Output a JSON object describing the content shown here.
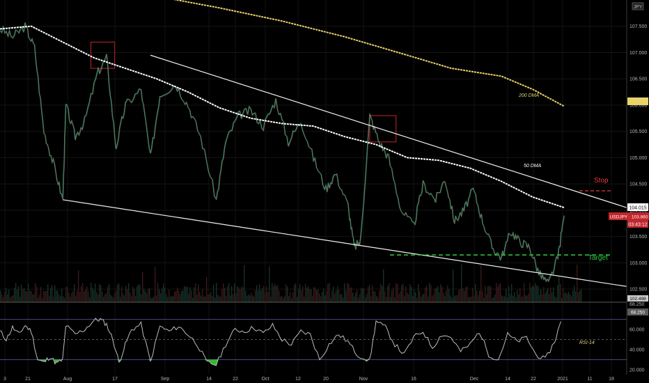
{
  "chart_data": {
    "type": "line",
    "symbol": "USDJPY",
    "currency": "JPY",
    "ylim": [
      102.25,
      108.0
    ],
    "price_ticks": [
      "107.500",
      "107.000",
      "106.500",
      "106.000",
      "105.500",
      "105.000",
      "104.500",
      "104.000",
      "103.500",
      "103.000",
      "102.500"
    ],
    "x_ticks": [
      "3",
      "21",
      "Aug",
      "17",
      "Sep",
      "14",
      "22",
      "Oct",
      "12",
      "20",
      "Nov",
      "16",
      "Dec",
      "14",
      "22",
      "2021",
      "11",
      "18"
    ],
    "price_badges": {
      "last_price": "104.015",
      "symbol_price": "USDJPY · 103.860",
      "countdown": "03:43:12",
      "ma_200": "105.972",
      "bottom": "102.498",
      "rsi_upper": "68.250",
      "rsi_value": "68.250"
    },
    "rsi_ticks": [
      "60.000",
      "40.000",
      "20.000"
    ],
    "rsi_ylim": [
      15,
      85
    ],
    "rsi_levels": {
      "upper": 70,
      "mid": 50,
      "lower": 30
    },
    "annotations": {
      "ma200_label": "200 DMA",
      "ma50_label": "50 DMA",
      "stop_label": "Stop",
      "target_label": "Target",
      "rsi_label": "RSI-14"
    },
    "levels": {
      "stop": 104.37,
      "target": 103.15
    },
    "upper_trendline": [
      [
        0.24,
        106.95
      ],
      [
        1.0,
        104.05
      ]
    ],
    "lower_trendline": [
      [
        0.1,
        104.2
      ],
      [
        1.0,
        102.55
      ]
    ],
    "price_series": [
      [
        0.0,
        107.45
      ],
      [
        0.02,
        107.3
      ],
      [
        0.04,
        107.5
      ],
      [
        0.055,
        107.1
      ],
      [
        0.07,
        105.5
      ],
      [
        0.085,
        104.9
      ],
      [
        0.1,
        104.2
      ],
      [
        0.105,
        106.0
      ],
      [
        0.12,
        105.4
      ],
      [
        0.135,
        105.7
      ],
      [
        0.155,
        106.6
      ],
      [
        0.17,
        106.9
      ],
      [
        0.185,
        105.2
      ],
      [
        0.2,
        106.0
      ],
      [
        0.225,
        106.3
      ],
      [
        0.24,
        105.0
      ],
      [
        0.255,
        106.2
      ],
      [
        0.28,
        106.4
      ],
      [
        0.3,
        106.0
      ],
      [
        0.32,
        105.4
      ],
      [
        0.345,
        104.2
      ],
      [
        0.36,
        105.3
      ],
      [
        0.38,
        105.8
      ],
      [
        0.4,
        105.9
      ],
      [
        0.42,
        105.6
      ],
      [
        0.44,
        106.1
      ],
      [
        0.46,
        105.3
      ],
      [
        0.48,
        105.7
      ],
      [
        0.5,
        105.0
      ],
      [
        0.52,
        104.4
      ],
      [
        0.535,
        104.7
      ],
      [
        0.555,
        104.1
      ],
      [
        0.565,
        103.3
      ],
      [
        0.575,
        103.4
      ],
      [
        0.59,
        105.8
      ],
      [
        0.605,
        105.3
      ],
      [
        0.62,
        105.0
      ],
      [
        0.64,
        104.0
      ],
      [
        0.66,
        103.7
      ],
      [
        0.675,
        104.5
      ],
      [
        0.695,
        104.2
      ],
      [
        0.71,
        104.6
      ],
      [
        0.725,
        103.8
      ],
      [
        0.74,
        104.0
      ],
      [
        0.755,
        104.4
      ],
      [
        0.77,
        103.8
      ],
      [
        0.785,
        103.3
      ],
      [
        0.8,
        103.1
      ],
      [
        0.815,
        103.6
      ],
      [
        0.83,
        103.4
      ],
      [
        0.845,
        103.3
      ],
      [
        0.86,
        102.8
      ],
      [
        0.875,
        102.6
      ],
      [
        0.89,
        103.1
      ],
      [
        0.9,
        103.9
      ]
    ],
    "ma50_series": [
      [
        0.0,
        107.45
      ],
      [
        0.05,
        107.5
      ],
      [
        0.1,
        107.2
      ],
      [
        0.15,
        106.9
      ],
      [
        0.2,
        106.7
      ],
      [
        0.25,
        106.5
      ],
      [
        0.3,
        106.25
      ],
      [
        0.35,
        105.95
      ],
      [
        0.4,
        105.75
      ],
      [
        0.45,
        105.65
      ],
      [
        0.5,
        105.6
      ],
      [
        0.55,
        105.4
      ],
      [
        0.6,
        105.25
      ],
      [
        0.65,
        105.0
      ],
      [
        0.7,
        104.95
      ],
      [
        0.75,
        104.8
      ],
      [
        0.8,
        104.55
      ],
      [
        0.85,
        104.25
      ],
      [
        0.9,
        104.05
      ]
    ],
    "ma200_series": [
      [
        0.26,
        108.05
      ],
      [
        0.35,
        107.85
      ],
      [
        0.45,
        107.6
      ],
      [
        0.55,
        107.3
      ],
      [
        0.65,
        106.95
      ],
      [
        0.72,
        106.7
      ],
      [
        0.8,
        106.55
      ],
      [
        0.85,
        106.3
      ],
      [
        0.9,
        105.98
      ]
    ],
    "highlight_boxes": [
      {
        "x0": 0.145,
        "x1": 0.183,
        "y0": 107.2,
        "y1": 106.7
      },
      {
        "x0": 0.59,
        "x1": 0.632,
        "y0": 105.8,
        "y1": 105.3
      }
    ],
    "rsi_series": [
      [
        0.0,
        58
      ],
      [
        0.01,
        50
      ],
      [
        0.02,
        62
      ],
      [
        0.03,
        55
      ],
      [
        0.04,
        64
      ],
      [
        0.05,
        58
      ],
      [
        0.06,
        30
      ],
      [
        0.07,
        27
      ],
      [
        0.08,
        33
      ],
      [
        0.09,
        26
      ],
      [
        0.1,
        30
      ],
      [
        0.105,
        64
      ],
      [
        0.12,
        55
      ],
      [
        0.135,
        60
      ],
      [
        0.15,
        69
      ],
      [
        0.16,
        70
      ],
      [
        0.17,
        65
      ],
      [
        0.18,
        50
      ],
      [
        0.19,
        27
      ],
      [
        0.2,
        45
      ],
      [
        0.21,
        60
      ],
      [
        0.225,
        65
      ],
      [
        0.24,
        28
      ],
      [
        0.255,
        63
      ],
      [
        0.27,
        58
      ],
      [
        0.285,
        63
      ],
      [
        0.3,
        55
      ],
      [
        0.315,
        45
      ],
      [
        0.33,
        27
      ],
      [
        0.345,
        25
      ],
      [
        0.36,
        45
      ],
      [
        0.375,
        60
      ],
      [
        0.39,
        58
      ],
      [
        0.405,
        62
      ],
      [
        0.42,
        56
      ],
      [
        0.435,
        64
      ],
      [
        0.45,
        50
      ],
      [
        0.465,
        45
      ],
      [
        0.48,
        58
      ],
      [
        0.495,
        55
      ],
      [
        0.51,
        30
      ],
      [
        0.525,
        45
      ],
      [
        0.54,
        55
      ],
      [
        0.555,
        48
      ],
      [
        0.57,
        35
      ],
      [
        0.59,
        29
      ],
      [
        0.6,
        68
      ],
      [
        0.615,
        62
      ],
      [
        0.63,
        45
      ],
      [
        0.645,
        35
      ],
      [
        0.66,
        52
      ],
      [
        0.675,
        58
      ],
      [
        0.69,
        42
      ],
      [
        0.705,
        55
      ],
      [
        0.72,
        52
      ],
      [
        0.735,
        38
      ],
      [
        0.75,
        45
      ],
      [
        0.765,
        58
      ],
      [
        0.78,
        35
      ],
      [
        0.795,
        30
      ],
      [
        0.81,
        55
      ],
      [
        0.825,
        48
      ],
      [
        0.84,
        52
      ],
      [
        0.855,
        35
      ],
      [
        0.87,
        30
      ],
      [
        0.885,
        48
      ],
      [
        0.895,
        68
      ]
    ],
    "volume_seed": 7
  }
}
